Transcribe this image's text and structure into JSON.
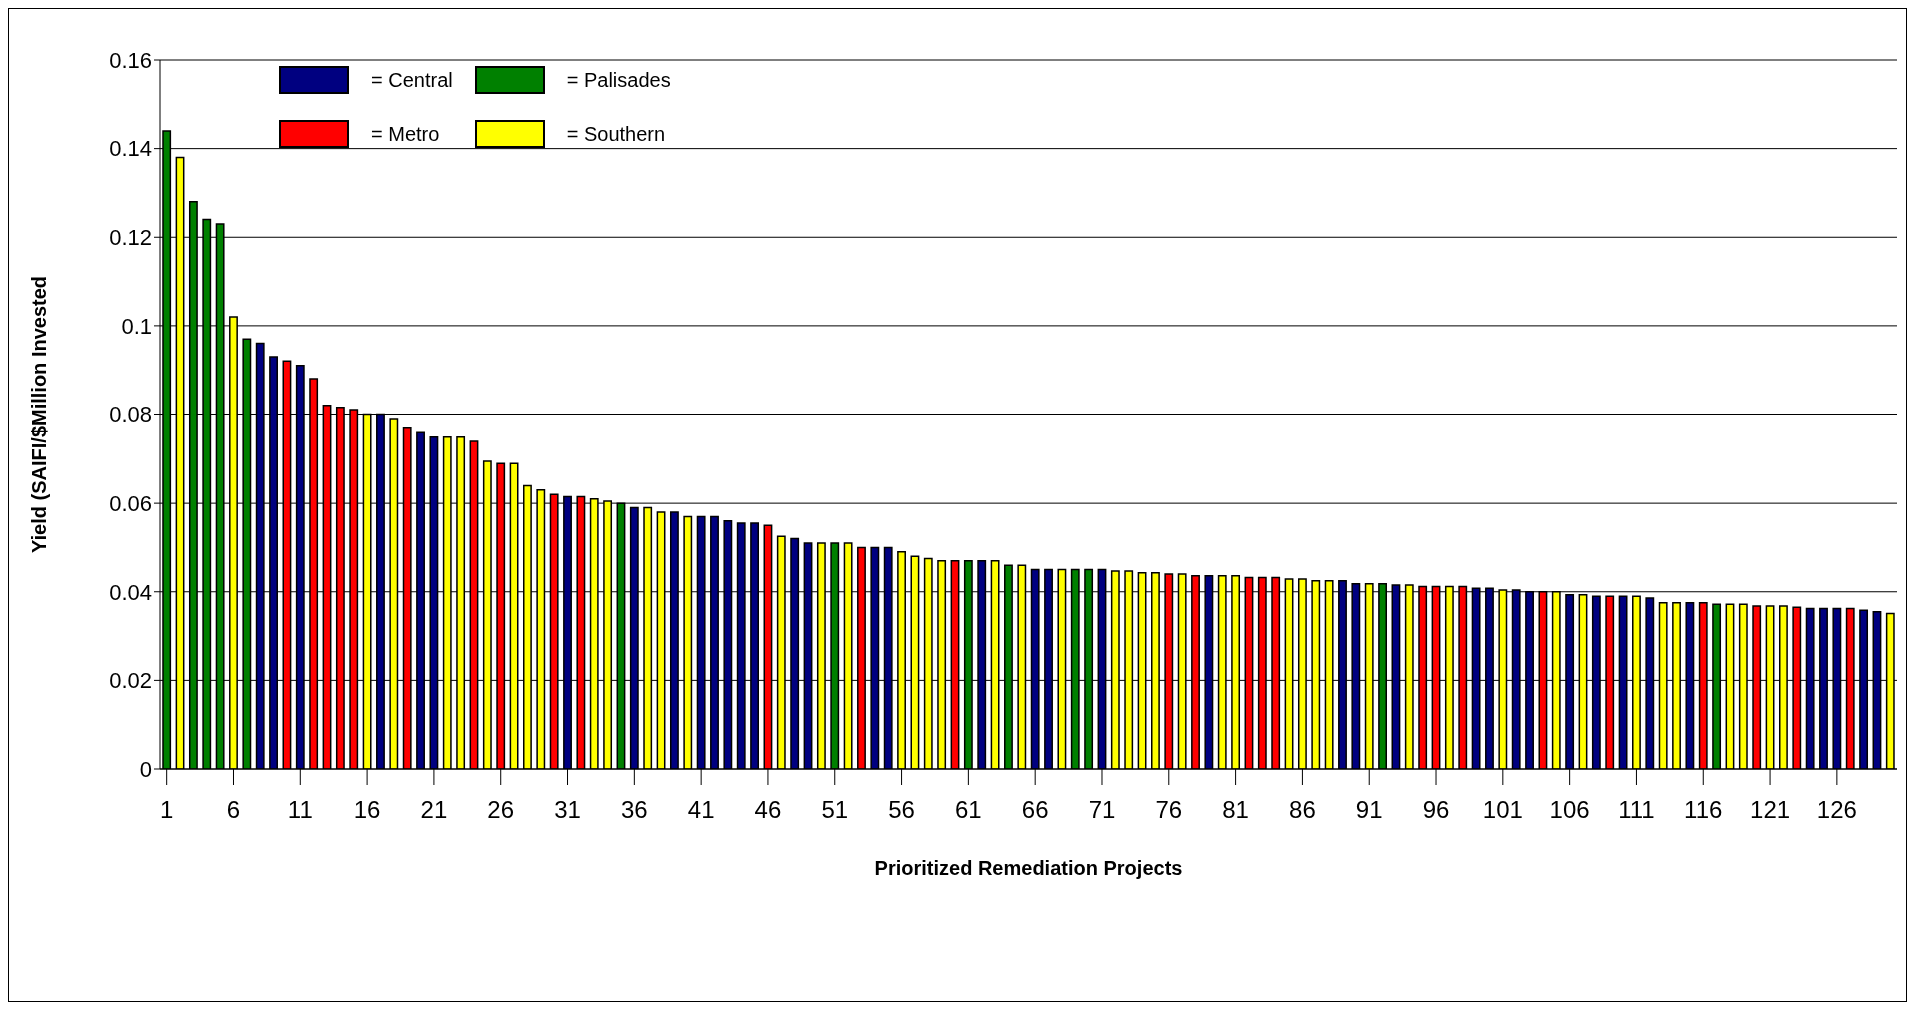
{
  "chart_data": {
    "type": "bar",
    "xlabel": "Prioritized Remediation Projects",
    "ylabel": "Yield (SAIFI/$Million Invested",
    "xlim": [
      0.5,
      130.5
    ],
    "xticks": [
      1,
      6,
      11,
      16,
      21,
      26,
      31,
      36,
      41,
      46,
      51,
      56,
      61,
      66,
      71,
      76,
      81,
      86,
      91,
      96,
      101,
      106,
      111,
      116,
      121,
      126
    ],
    "ylim": [
      0,
      0.16
    ],
    "yticks": [
      0,
      0.02,
      0.04,
      0.06,
      0.08,
      0.1,
      0.12,
      0.14,
      0.16
    ],
    "grid": "y",
    "legend": "top left",
    "series": [
      {
        "name": "= Central",
        "color": "#000080",
        "x": [
          8,
          9,
          11,
          17,
          20,
          21,
          31,
          36,
          39,
          41,
          42,
          43,
          44,
          45,
          48,
          49,
          54,
          55,
          62,
          66,
          67,
          71,
          79,
          89,
          90,
          93,
          99,
          100,
          102,
          103,
          106,
          108,
          110,
          112,
          115,
          124,
          125,
          126,
          128,
          129
        ],
        "values": [
          0.096,
          0.093,
          0.091,
          0.08,
          0.076,
          0.075,
          0.0615,
          0.059,
          0.058,
          0.057,
          0.057,
          0.056,
          0.0555,
          0.0555,
          0.052,
          0.051,
          0.05,
          0.05,
          0.047,
          0.045,
          0.045,
          0.045,
          0.0436,
          0.0425,
          0.0418,
          0.0415,
          0.0408,
          0.0408,
          0.0404,
          0.04,
          0.0393,
          0.039,
          0.039,
          0.0386,
          0.0375,
          0.0362,
          0.0362,
          0.0362,
          0.0358,
          0.0355
        ]
      },
      {
        "name": "= Palisades",
        "color": "#008000",
        "x": [
          1,
          3,
          4,
          5,
          7,
          35,
          51,
          61,
          64,
          69,
          70,
          92,
          117
        ],
        "values": [
          0.144,
          0.128,
          0.124,
          0.123,
          0.097,
          0.06,
          0.051,
          0.047,
          0.046,
          0.045,
          0.045,
          0.0418,
          0.0372
        ]
      },
      {
        "name": "= Metro",
        "color": "#ff0000",
        "x": [
          10,
          12,
          13,
          14,
          15,
          19,
          24,
          26,
          30,
          32,
          46,
          53,
          60,
          76,
          78,
          82,
          83,
          84,
          95,
          96,
          98,
          104,
          109,
          116,
          120,
          123,
          127
        ],
        "values": [
          0.092,
          0.088,
          0.082,
          0.0815,
          0.081,
          0.077,
          0.074,
          0.069,
          0.062,
          0.0615,
          0.055,
          0.05,
          0.047,
          0.044,
          0.0436,
          0.0432,
          0.0432,
          0.0432,
          0.0412,
          0.0412,
          0.0412,
          0.04,
          0.039,
          0.0375,
          0.0368,
          0.0365,
          0.0362
        ]
      },
      {
        "name": "= Southern",
        "color": "#ffff00",
        "x": [
          2,
          6,
          16,
          18,
          22,
          23,
          25,
          27,
          28,
          29,
          33,
          34,
          37,
          38,
          40,
          47,
          50,
          52,
          56,
          57,
          58,
          59,
          63,
          65,
          68,
          72,
          73,
          74,
          75,
          77,
          80,
          81,
          85,
          86,
          87,
          88,
          91,
          94,
          97,
          101,
          105,
          107,
          111,
          113,
          114,
          118,
          119,
          121,
          122,
          130
        ],
        "values": [
          0.138,
          0.102,
          0.08,
          0.079,
          0.075,
          0.075,
          0.0695,
          0.069,
          0.064,
          0.063,
          0.061,
          0.0605,
          0.059,
          0.058,
          0.057,
          0.0525,
          0.051,
          0.051,
          0.049,
          0.048,
          0.0475,
          0.047,
          0.047,
          0.046,
          0.045,
          0.0447,
          0.0447,
          0.0443,
          0.0443,
          0.044,
          0.0436,
          0.0436,
          0.0429,
          0.0429,
          0.0425,
          0.0425,
          0.0418,
          0.0415,
          0.0412,
          0.0404,
          0.04,
          0.0393,
          0.039,
          0.0375,
          0.0375,
          0.0372,
          0.0372,
          0.0368,
          0.0368,
          0.0351
        ]
      }
    ]
  }
}
